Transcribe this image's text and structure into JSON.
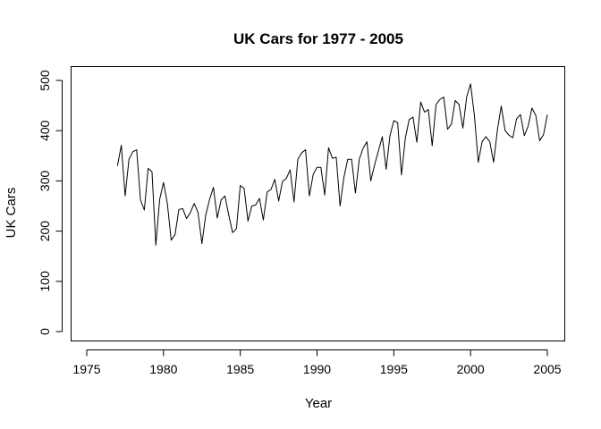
{
  "chart_data": {
    "type": "line",
    "title": "UK Cars for 1977 - 2005",
    "xlabel": "Year",
    "ylabel": "UK Cars",
    "xlim": [
      1975,
      2005
    ],
    "ylim": [
      0,
      500
    ],
    "x_ticks": [
      1975,
      1980,
      1985,
      1990,
      1995,
      2000,
      2005
    ],
    "y_ticks": [
      0,
      100,
      200,
      300,
      400,
      500
    ],
    "grid": false,
    "legend": "none",
    "series": [
      {
        "color": "#000000",
        "x_start": 1977.0,
        "x_step": 0.25,
        "values": [
          330,
          371,
          270,
          343,
          358,
          362,
          262,
          242,
          325,
          318,
          172,
          263,
          297,
          255,
          182,
          193,
          243,
          245,
          225,
          237,
          255,
          237,
          175,
          232,
          263,
          287,
          226,
          262,
          270,
          232,
          197,
          205,
          291,
          285,
          220,
          250,
          252,
          265,
          222,
          278,
          283,
          303,
          260,
          299,
          305,
          322,
          258,
          343,
          356,
          362,
          270,
          313,
          327,
          327,
          272,
          366,
          345,
          347,
          250,
          307,
          343,
          343,
          276,
          343,
          365,
          378,
          300,
          332,
          360,
          388,
          323,
          390,
          420,
          416,
          312,
          385,
          422,
          427,
          377,
          457,
          437,
          442,
          370,
          452,
          462,
          467,
          403,
          413,
          460,
          452,
          405,
          468,
          493,
          430,
          337,
          378,
          388,
          378,
          337,
          402,
          449,
          400,
          391,
          386,
          424,
          432,
          390,
          409,
          445,
          430,
          380,
          392,
          432
        ]
      }
    ]
  }
}
